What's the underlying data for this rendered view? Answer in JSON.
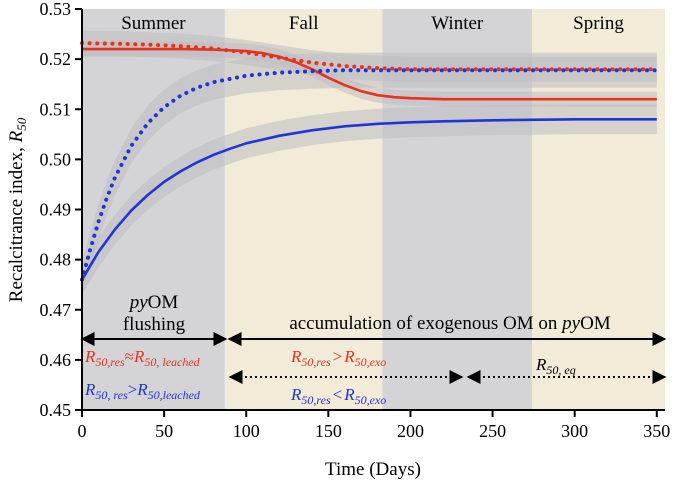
{
  "chart_data": {
    "type": "line",
    "xlabel": "Time (Days)",
    "ylabel_main": "Recalcitrance index, ",
    "ylabel_italic": "R",
    "ylabel_sub": "50",
    "xlim": [
      0,
      355
    ],
    "ylim": [
      0.45,
      0.53
    ],
    "x_ticks": [
      0,
      50,
      100,
      150,
      200,
      250,
      300,
      350
    ],
    "x_tick_labels": [
      "0",
      "50",
      "100",
      "150",
      "200",
      "250",
      "300",
      "350"
    ],
    "y_ticks": [
      0.45,
      0.46,
      0.47,
      0.48,
      0.49,
      0.5,
      0.51,
      0.52,
      0.53
    ],
    "y_tick_labels": [
      "0.45",
      "0.46",
      "0.47",
      "0.48",
      "0.49",
      "0.50",
      "0.51",
      "0.52",
      "0.53"
    ],
    "seasons": [
      {
        "name": "Summer",
        "start": 0,
        "end": 87,
        "color": "#d4d4d6"
      },
      {
        "name": "Fall",
        "start": 87,
        "end": 183,
        "color": "#f1ebd8"
      },
      {
        "name": "Winter",
        "start": 183,
        "end": 274,
        "color": "#d4d4d6"
      },
      {
        "name": "Spring",
        "start": 274,
        "end": 355,
        "color": "#f1ebd8"
      }
    ],
    "series": [
      {
        "name": "red-solid",
        "color": "#e8321e",
        "style": "solid",
        "x": [
          0,
          20,
          40,
          60,
          80,
          100,
          110,
          120,
          130,
          140,
          150,
          160,
          170,
          180,
          190,
          200,
          220,
          240,
          260,
          280,
          300,
          350
        ],
        "y": [
          0.522,
          0.522,
          0.522,
          0.522,
          0.5219,
          0.5216,
          0.5212,
          0.5205,
          0.5194,
          0.518,
          0.5163,
          0.5148,
          0.5136,
          0.5128,
          0.5124,
          0.5122,
          0.512,
          0.512,
          0.512,
          0.512,
          0.512,
          0.512
        ],
        "band": 0.0015
      },
      {
        "name": "red-dotted",
        "color": "#e8321e",
        "style": "dotted",
        "x": [
          0,
          20,
          40,
          60,
          80,
          100,
          120,
          140,
          160,
          180,
          200,
          250,
          300,
          350
        ],
        "y": [
          0.5232,
          0.5231,
          0.5229,
          0.5226,
          0.5221,
          0.5213,
          0.5203,
          0.5193,
          0.5186,
          0.5182,
          0.518,
          0.518,
          0.518,
          0.518
        ],
        "band": 0.0025
      },
      {
        "name": "blue-dotted",
        "color": "#1f35d6",
        "style": "dotted",
        "x": [
          0,
          5,
          10,
          15,
          20,
          30,
          40,
          50,
          60,
          70,
          80,
          100,
          120,
          140,
          160,
          180,
          200,
          250,
          300,
          350
        ],
        "y": [
          0.476,
          0.482,
          0.4875,
          0.4922,
          0.4963,
          0.5027,
          0.5072,
          0.5104,
          0.5127,
          0.5143,
          0.5154,
          0.5167,
          0.5173,
          0.5176,
          0.5178,
          0.5178,
          0.5178,
          0.5178,
          0.5178,
          0.5178
        ],
        "band": 0.0035
      },
      {
        "name": "blue-solid",
        "color": "#1f35d6",
        "style": "solid",
        "x": [
          0,
          10,
          20,
          30,
          40,
          50,
          60,
          70,
          80,
          90,
          100,
          120,
          140,
          160,
          180,
          200,
          220,
          250,
          300,
          350
        ],
        "y": [
          0.476,
          0.4815,
          0.486,
          0.4898,
          0.4929,
          0.4955,
          0.4976,
          0.4994,
          0.5009,
          0.5021,
          0.5032,
          0.5047,
          0.5058,
          0.5066,
          0.5071,
          0.5074,
          0.5076,
          0.5078,
          0.508,
          0.508
        ],
        "band": 0.003
      }
    ],
    "annotations": {
      "pyom_line1_italic": "py",
      "pyom_line1_rest": "OM",
      "pyom_line2": "flushing",
      "accum_text_before": "accumulation of exogenous OM on ",
      "accum_text_italic": "py",
      "accum_text_after": "OM",
      "red_eq_left": {
        "a": "R",
        "a_sub": "50,res",
        "op": "≈",
        "b": "R",
        "b_sub": "50, leached",
        "color": "#e8321e"
      },
      "blue_eq_left": {
        "a": "R",
        "a_sub": "50, res",
        "op": ">",
        "b": "R",
        "b_sub": "50,leached",
        "color": "#1f35d6"
      },
      "red_eq_right": {
        "a": "R",
        "a_sub": "50,res",
        "op": ">",
        "b": "R",
        "b_sub": "50,exo",
        "color": "#e8321e"
      },
      "blue_eq_right": {
        "a": "R",
        "a_sub": "50,res",
        "op": "<",
        "b": "R",
        "b_sub": "50,exo",
        "color": "#1f35d6"
      },
      "eq_label": {
        "a": "R",
        "a_sub": "50, eq",
        "color": "#000000"
      }
    }
  }
}
